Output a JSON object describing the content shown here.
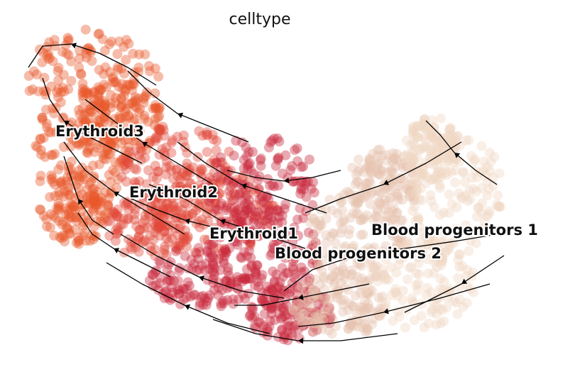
{
  "chart_data": {
    "type": "scatter",
    "title": "celltype",
    "xlabel": "",
    "ylabel": "",
    "axes_visible": false,
    "grid": false,
    "legend": "on data",
    "overlay": "velocity streamlines with arrowheads",
    "categories": [
      {
        "name": "Erythroid3",
        "color": "#e8582a"
      },
      {
        "name": "Erythroid2",
        "color": "#e0493a"
      },
      {
        "name": "Erythroid1",
        "color": "#c9283b"
      },
      {
        "name": "Blood progenitors 2",
        "color": "#e6c4ae"
      },
      {
        "name": "Blood progenitors 1",
        "color": "#f1d6c4"
      }
    ]
  }
}
